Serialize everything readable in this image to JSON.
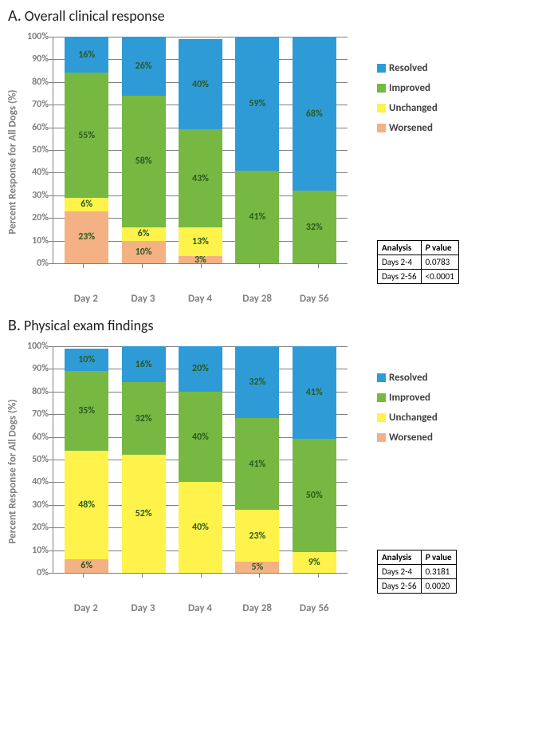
{
  "colors": {
    "resolved": "#2e9bd6",
    "improved": "#77b843",
    "unchanged": "#fff24a",
    "worsened": "#f4b183",
    "grid": "#808080",
    "axis_label": "#7f7f7f",
    "seg_label": "#2a5a1f",
    "background": "#ffffff"
  },
  "legend_order": [
    "resolved",
    "improved",
    "unchanged",
    "worsened"
  ],
  "legend_labels": {
    "resolved": "Resolved",
    "improved": "Improved",
    "unchanged": "Unchanged",
    "worsened": "Worsened"
  },
  "y_axis": {
    "min": 0,
    "max": 100,
    "step": 10,
    "suffix": "%"
  },
  "typography": {
    "title_fontsize": 18,
    "axis_label_fontsize": 13,
    "tick_fontsize": 12,
    "seg_label_fontsize": 12,
    "legend_fontsize": 13,
    "table_fontsize": 11
  },
  "panels": [
    {
      "letter": "A.",
      "title": "Overall clinical response",
      "ylabel": "Percent Response for All Dogs (%)",
      "categories": [
        "Day 2",
        "Day 3",
        "Day 4",
        "Day 28",
        "Day 56"
      ],
      "series": [
        {
          "worsened": 23,
          "unchanged": 6,
          "improved": 55,
          "resolved": 16
        },
        {
          "worsened": 10,
          "unchanged": 6,
          "improved": 58,
          "resolved": 26
        },
        {
          "worsened": 3,
          "unchanged": 13,
          "improved": 43,
          "resolved": 40
        },
        {
          "worsened": 0,
          "unchanged": 0,
          "improved": 41,
          "resolved": 59
        },
        {
          "worsened": 0,
          "unchanged": 0,
          "improved": 32,
          "resolved": 68
        }
      ],
      "label_omit": {
        "3": [
          "worsened"
        ]
      },
      "analysis": {
        "header": [
          "Analysis",
          "P value"
        ],
        "rows": [
          [
            "Days 2-4",
            "0.0783"
          ],
          [
            "Days 2-56",
            "<0.0001"
          ]
        ]
      }
    },
    {
      "letter": "B.",
      "title": "Physical exam findings",
      "ylabel": "Percent Response for All Dogs (%)",
      "categories": [
        "Day 2",
        "Day 3",
        "Day 4",
        "Day 28",
        "Day 56"
      ],
      "series": [
        {
          "worsened": 6,
          "unchanged": 48,
          "improved": 35,
          "resolved": 10
        },
        {
          "worsened": 0,
          "unchanged": 52,
          "improved": 32,
          "resolved": 16
        },
        {
          "worsened": 0,
          "unchanged": 40,
          "improved": 40,
          "resolved": 20
        },
        {
          "worsened": 5,
          "unchanged": 23,
          "improved": 41,
          "resolved": 32
        },
        {
          "worsened": 0,
          "unchanged": 9,
          "improved": 50,
          "resolved": 41
        }
      ],
      "label_omit": {},
      "analysis": {
        "header": [
          "Analysis",
          "P value"
        ],
        "rows": [
          [
            "Days 2-4",
            "0.3181"
          ],
          [
            "Days 2-56",
            "0.0020"
          ]
        ]
      }
    }
  ]
}
